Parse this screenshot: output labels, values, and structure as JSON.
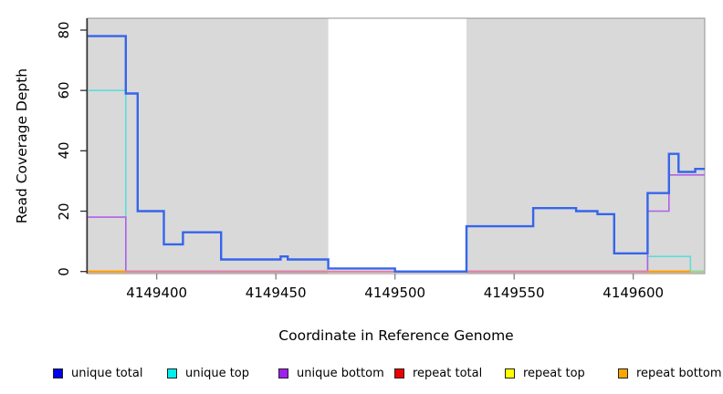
{
  "chart_data": {
    "type": "line",
    "subtype": "step-coverage-plot",
    "title": "",
    "xlabel": "Coordinate in Reference Genome",
    "ylabel": "Read Coverage Depth",
    "x_range": [
      4149371,
      4149630
    ],
    "y_range": [
      0,
      80
    ],
    "x_ticks": [
      4149400,
      4149450,
      4149500,
      4149550,
      4149600
    ],
    "y_ticks": [
      0,
      20,
      40,
      60,
      80
    ],
    "grid": false,
    "legend_position": "bottom",
    "background": {
      "plot_bg": "#d9d9d9",
      "highlight_region": {
        "from": 4149472,
        "to": 4149530,
        "color": "#ffffff"
      }
    },
    "series": [
      {
        "name": "unique total",
        "legend_color": "#0000ee",
        "stroke": "#3565ec",
        "width": 2.4,
        "steps": [
          [
            4149371,
            78
          ],
          [
            4149387,
            59
          ],
          [
            4149392,
            20
          ],
          [
            4149403,
            9
          ],
          [
            4149411,
            13
          ],
          [
            4149427,
            4
          ],
          [
            4149452,
            5
          ],
          [
            4149455,
            4
          ],
          [
            4149472,
            1
          ],
          [
            4149500,
            0
          ],
          [
            4149530,
            15
          ],
          [
            4149558,
            21
          ],
          [
            4149576,
            20
          ],
          [
            4149585,
            19
          ],
          [
            4149592,
            6
          ],
          [
            4149606,
            26
          ],
          [
            4149615,
            39
          ],
          [
            4149619,
            33
          ],
          [
            4149626,
            34
          ]
        ]
      },
      {
        "name": "unique top",
        "legend_color": "#00eeee",
        "stroke": "#5fdcdc",
        "width": 1.6,
        "steps": [
          [
            4149371,
            60
          ],
          [
            4149387,
            0
          ],
          [
            4149606,
            5
          ],
          [
            4149624,
            0
          ]
        ]
      },
      {
        "name": "unique bottom",
        "legend_color": "#a020f0",
        "stroke": "#b060e8",
        "width": 1.6,
        "steps": [
          [
            4149371,
            18
          ],
          [
            4149387,
            0
          ],
          [
            4149606,
            20
          ],
          [
            4149615,
            32
          ]
        ]
      },
      {
        "name": "repeat total",
        "legend_color": "#ee0000",
        "stroke": "#ee0000",
        "width": 1.6,
        "steps": [
          [
            4149371,
            0
          ]
        ]
      },
      {
        "name": "repeat top",
        "legend_color": "#ffff00",
        "stroke": "#ffff00",
        "width": 1.6,
        "steps": [
          [
            4149371,
            0
          ]
        ]
      },
      {
        "name": "repeat bottom",
        "legend_color": "#ffa500",
        "stroke": "#ffa500",
        "width": 2.0,
        "steps": [
          [
            4149371,
            0
          ]
        ]
      }
    ],
    "zero_line_segments": [
      {
        "from": 4149371,
        "to": 4149387,
        "color": "#ff9d00"
      },
      {
        "from": 4149387,
        "to": 4149606,
        "color": "#dd7fae"
      },
      {
        "from": 4149606,
        "to": 4149624,
        "color": "#ff9d00"
      },
      {
        "from": 4149624,
        "to": 4149630,
        "color": "#8fd9a0"
      }
    ],
    "legend": [
      {
        "label": "unique total",
        "color": "#0000ee"
      },
      {
        "label": "unique top",
        "color": "#00eeee"
      },
      {
        "label": "unique bottom",
        "color": "#a020f0"
      },
      {
        "label": "repeat total",
        "color": "#ee0000"
      },
      {
        "label": "repeat top",
        "color": "#ffff00"
      },
      {
        "label": "repeat bottom",
        "color": "#ffa500"
      }
    ]
  }
}
